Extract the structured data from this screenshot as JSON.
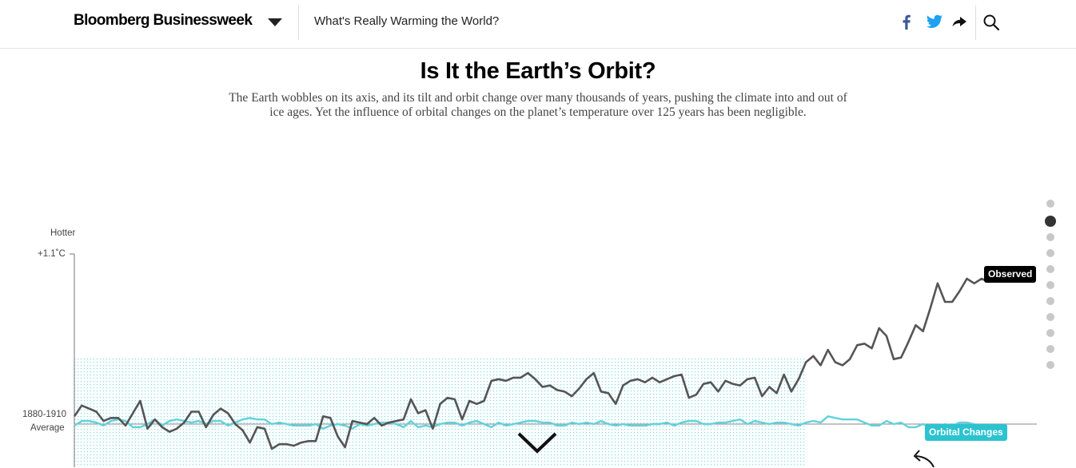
{
  "header": {
    "brand": "Bloomberg Businessweek",
    "story_title": "What's Really Warming the World?"
  },
  "headline": "Is It the Earth’s Orbit?",
  "dek": "The Earth wobbles on its axis, and its tilt and orbit change over many thousands of years, pushing the climate into and out of ice ages. Yet the influence of orbital changes on the planet’s temperature over 125 years has been negligible.",
  "chart_data": {
    "type": "line",
    "top_label": "Hotter",
    "y_max_label": "+1.1˚C",
    "baseline_label_1": "1880-1910",
    "baseline_label_2": "Average",
    "ylim": [
      -0.35,
      1.1
    ],
    "x": [
      1880,
      1881,
      1882,
      1883,
      1884,
      1885,
      1886,
      1887,
      1888,
      1889,
      1890,
      1891,
      1892,
      1893,
      1894,
      1895,
      1896,
      1897,
      1898,
      1899,
      1900,
      1901,
      1902,
      1903,
      1904,
      1905,
      1906,
      1907,
      1908,
      1909,
      1910,
      1911,
      1912,
      1913,
      1914,
      1915,
      1916,
      1917,
      1918,
      1919,
      1920,
      1921,
      1922,
      1923,
      1924,
      1925,
      1926,
      1927,
      1928,
      1929,
      1930,
      1931,
      1932,
      1933,
      1934,
      1935,
      1936,
      1937,
      1938,
      1939,
      1940,
      1941,
      1942,
      1943,
      1944,
      1945,
      1946,
      1947,
      1948,
      1949,
      1950,
      1951,
      1952,
      1953,
      1954,
      1955,
      1956,
      1957,
      1958,
      1959,
      1960,
      1961,
      1962,
      1963,
      1964,
      1965,
      1966,
      1967,
      1968,
      1969,
      1970,
      1971,
      1972,
      1973,
      1974,
      1975,
      1976,
      1977,
      1978,
      1979,
      1980,
      1981,
      1982,
      1983,
      1984,
      1985,
      1986,
      1987,
      1988,
      1989,
      1990,
      1991,
      1992,
      1993,
      1994,
      1995,
      1996,
      1997,
      1998,
      1999,
      2000,
      2001,
      2002,
      2003,
      2004,
      2005
    ],
    "series": [
      {
        "name": "Observed",
        "color": "#555555",
        "values": [
          0.05,
          0.12,
          0.1,
          0.08,
          0.02,
          0.04,
          0.04,
          -0.01,
          0.07,
          0.15,
          -0.03,
          0.03,
          -0.02,
          -0.05,
          -0.03,
          0.01,
          0.08,
          0.08,
          -0.02,
          0.06,
          0.1,
          0.07,
          0.0,
          -0.04,
          -0.12,
          -0.02,
          -0.03,
          -0.16,
          -0.13,
          -0.13,
          -0.14,
          -0.12,
          -0.11,
          -0.11,
          0.05,
          0.04,
          -0.08,
          -0.15,
          0.02,
          0.01,
          0.0,
          0.04,
          -0.01,
          0.01,
          0.02,
          0.03,
          0.16,
          0.07,
          0.09,
          -0.03,
          0.13,
          0.17,
          0.16,
          0.03,
          0.15,
          0.13,
          0.15,
          0.28,
          0.29,
          0.28,
          0.3,
          0.3,
          0.33,
          0.29,
          0.24,
          0.25,
          0.22,
          0.21,
          0.18,
          0.23,
          0.29,
          0.33,
          0.21,
          0.2,
          0.13,
          0.25,
          0.28,
          0.29,
          0.27,
          0.3,
          0.27,
          0.29,
          0.31,
          0.32,
          0.17,
          0.19,
          0.26,
          0.27,
          0.21,
          0.28,
          0.26,
          0.25,
          0.29,
          0.3,
          0.18,
          0.24,
          0.2,
          0.32,
          0.21,
          0.29,
          0.4,
          0.44,
          0.38,
          0.48,
          0.4,
          0.38,
          0.42,
          0.51,
          0.52,
          0.49,
          0.62,
          0.57,
          0.42,
          0.43,
          0.53,
          0.64,
          0.6,
          0.75,
          0.91,
          0.79,
          0.79,
          0.86,
          0.94,
          0.91,
          0.94,
          0.92
        ]
      },
      {
        "name": "Orbital Changes",
        "color": "#62d2dc",
        "values": [
          -0.01,
          0.02,
          0.02,
          0.01,
          -0.01,
          0.02,
          0.03,
          0.02,
          -0.02,
          -0.02,
          0.0,
          0.03,
          -0.01,
          0.02,
          0.03,
          0.02,
          0.01,
          0.02,
          0.0,
          0.02,
          0.02,
          -0.01,
          0.01,
          0.03,
          0.04,
          0.03,
          0.03,
          0.0,
          0.01,
          0.0,
          -0.01,
          -0.01,
          -0.01,
          0.0,
          -0.03,
          -0.01,
          0.0,
          -0.01,
          -0.03,
          0.0,
          -0.01,
          0.0,
          0.01,
          0.01,
          0.0,
          -0.02,
          0.02,
          -0.02,
          -0.01,
          -0.02,
          0.0,
          0.01,
          0.01,
          -0.01,
          0.01,
          0.02,
          0.0,
          -0.02,
          0.01,
          -0.01,
          0.0,
          0.01,
          0.02,
          0.02,
          0.01,
          0.01,
          -0.01,
          -0.01,
          0.01,
          0.0,
          0.01,
          0.0,
          0.02,
          0.0,
          -0.01,
          0.0,
          -0.01,
          -0.01,
          -0.01,
          0.0,
          0.0,
          0.01,
          -0.01,
          0.01,
          0.02,
          0.02,
          0.0,
          0.0,
          0.01,
          0.01,
          0.02,
          0.03,
          0.0,
          0.02,
          0.01,
          0.0,
          0.01,
          0.01,
          0.0,
          -0.01,
          0.01,
          0.02,
          0.01,
          0.05,
          0.04,
          0.03,
          0.03,
          0.03,
          0.01,
          -0.01,
          -0.01,
          0.02,
          0.0,
          0.01,
          -0.02,
          -0.02,
          0.0,
          -0.02,
          -0.01,
          0.0,
          -0.01,
          0.01,
          0.01,
          0.0,
          -0.03,
          -0.02
        ]
      }
    ]
  },
  "labels": {
    "observed": "Observed",
    "orbital": "Orbital Changes"
  },
  "icons": {
    "menu_caret": "caret-down-icon",
    "facebook": "facebook-icon",
    "twitter": "twitter-icon",
    "share": "share-arrow-icon",
    "search": "search-icon",
    "scroll": "chevron-down-icon"
  },
  "colors": {
    "facebook": "#3b5998",
    "twitter": "#1da1f2",
    "observed": "#555555",
    "orbital": "#62d2dc",
    "orbital_tag": "#2cc3d0"
  },
  "progress": {
    "total_steps": 11,
    "active_step": 2
  }
}
